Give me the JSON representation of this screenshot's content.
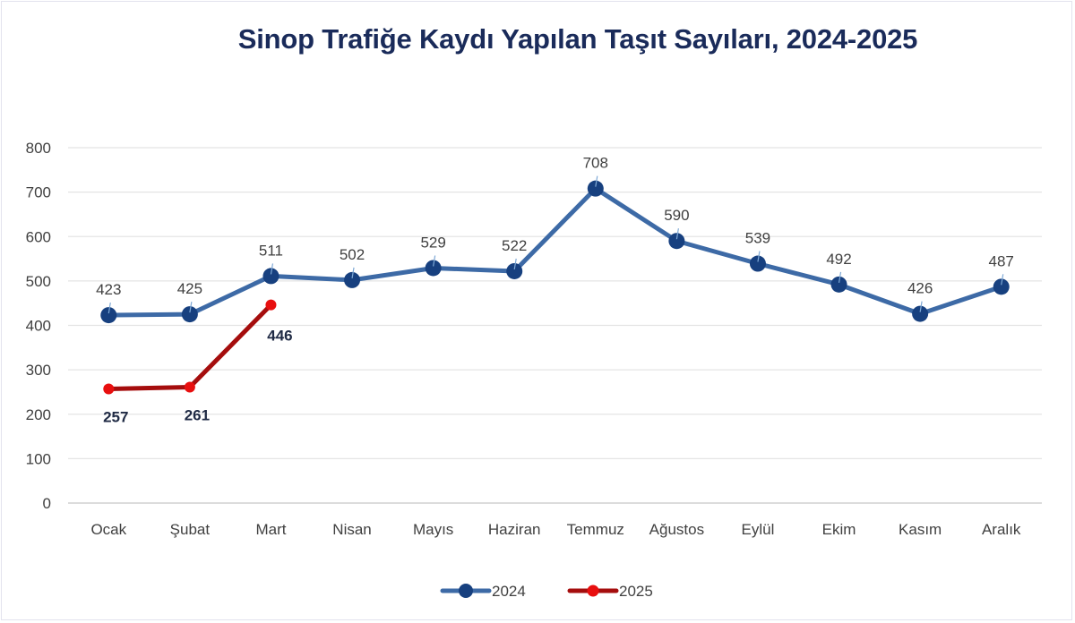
{
  "title": "Sinop Trafiğe Kaydı Yapılan Taşıt Sayıları, 2024-2025",
  "legend": [
    {
      "label": "2024",
      "color": "#3d6aa6",
      "marker": "#17407f"
    },
    {
      "label": "2025",
      "color": "#a50d0d",
      "marker": "#e80f0f"
    }
  ],
  "chart_data": {
    "type": "line",
    "title": "Sinop Trafiğe Kaydı Yapılan Taşıt Sayıları, 2024-2025",
    "xlabel": "",
    "ylabel": "",
    "categories": [
      "Ocak",
      "Şubat",
      "Mart",
      "Nisan",
      "Mayıs",
      "Haziran",
      "Temmuz",
      "Ağustos",
      "Eylül",
      "Ekim",
      "Kasım",
      "Aralık"
    ],
    "series": [
      {
        "name": "2024",
        "values": [
          423,
          425,
          511,
          502,
          529,
          522,
          708,
          590,
          539,
          492,
          426,
          487
        ]
      },
      {
        "name": "2025",
        "values": [
          257,
          261,
          446
        ]
      }
    ],
    "ylim": [
      0,
      800
    ],
    "yticks": [
      0,
      100,
      200,
      300,
      400,
      500,
      600,
      700,
      800
    ],
    "grid": true,
    "legend_position": "bottom",
    "data_labels": true
  }
}
